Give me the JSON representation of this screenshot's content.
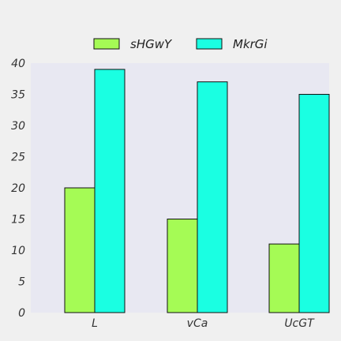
{
  "chart_data": {
    "type": "bar",
    "categories": [
      "L",
      "vCa",
      "UcGT"
    ],
    "series": [
      {
        "name": "sHGwY",
        "values": [
          20,
          15,
          11
        ],
        "color": "#a5fb55"
      },
      {
        "name": "MkrGi",
        "values": [
          39,
          37,
          35
        ],
        "color": "#1affe2"
      }
    ],
    "ylim": [
      0,
      40
    ],
    "yticks": [
      0,
      5,
      10,
      15,
      20,
      25,
      30,
      35,
      40
    ],
    "grid": false,
    "legend_position": "top-center",
    "plot_background": "#e8e8f2",
    "page_background": "#f0f0f0"
  }
}
